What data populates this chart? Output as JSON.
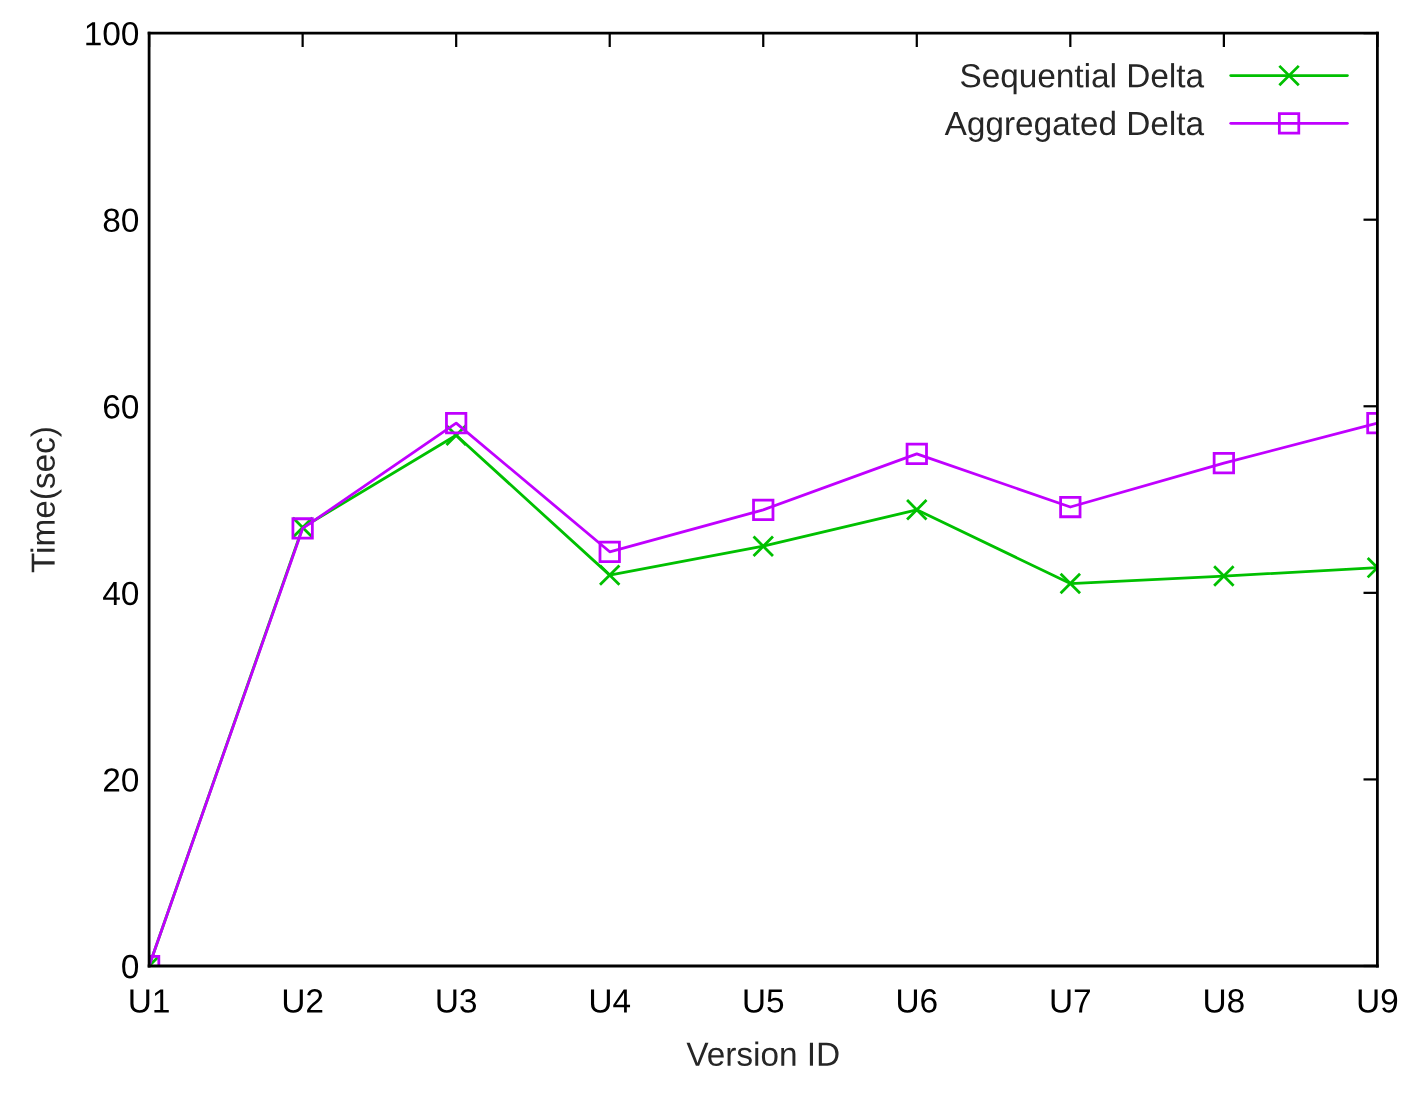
{
  "chart_data": {
    "type": "line",
    "xlabel": "Version ID",
    "ylabel": "Time(sec)",
    "categories": [
      "U1",
      "U2",
      "U3",
      "U4",
      "U5",
      "U6",
      "U7",
      "U8",
      "U9"
    ],
    "ylim": [
      0,
      100
    ],
    "yticks": [
      0,
      20,
      40,
      60,
      80,
      100
    ],
    "grid": false,
    "legend": "top right",
    "series": [
      {
        "name": "Sequential Delta",
        "color": "#00c000",
        "marker": "cross",
        "values": [
          0,
          47,
          56.9,
          41.9,
          45.0,
          48.9,
          41.0,
          41.8,
          42.7
        ]
      },
      {
        "name": "Aggregated Delta",
        "color": "#c000ff",
        "marker": "square",
        "values": [
          0,
          46.9,
          58.2,
          44.4,
          48.9,
          54.9,
          49.2,
          53.9,
          58.2
        ]
      }
    ]
  }
}
